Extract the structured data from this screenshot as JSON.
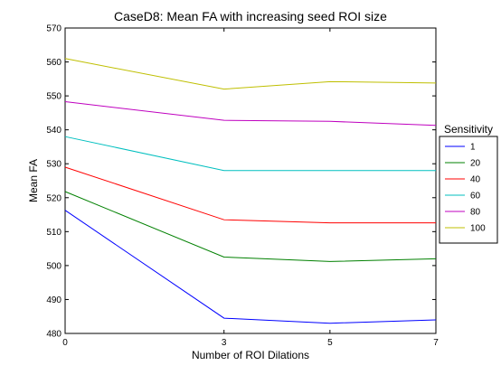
{
  "chart_data": {
    "type": "line",
    "title": "CaseD8: Mean FA with increasing seed ROI size",
    "xlabel": "Number of ROI Dilations",
    "ylabel": "Mean FA",
    "xlim": [
      0,
      7
    ],
    "ylim": [
      480,
      570
    ],
    "xticks": [
      0,
      3,
      5,
      7
    ],
    "yticks": [
      480,
      490,
      500,
      510,
      520,
      530,
      540,
      550,
      560,
      570
    ],
    "legend_title": "Sensitivity",
    "legend_position": "outside-right",
    "grid": false,
    "x": [
      0,
      3,
      5,
      7
    ],
    "series": [
      {
        "name": "1",
        "color": "#0000ff",
        "values": [
          516.3,
          484.5,
          483.0,
          484.0
        ]
      },
      {
        "name": "20",
        "color": "#008000",
        "values": [
          521.8,
          502.5,
          501.2,
          502.0
        ]
      },
      {
        "name": "40",
        "color": "#ff0000",
        "values": [
          529.0,
          513.5,
          512.6,
          512.6
        ]
      },
      {
        "name": "60",
        "color": "#00bfbf",
        "values": [
          538.0,
          528.0,
          528.0,
          528.0
        ]
      },
      {
        "name": "80",
        "color": "#bf00bf",
        "values": [
          548.3,
          542.8,
          542.5,
          541.3
        ]
      },
      {
        "name": "100",
        "color": "#bfbf00",
        "values": [
          561.0,
          552.0,
          554.2,
          553.8
        ]
      }
    ]
  }
}
